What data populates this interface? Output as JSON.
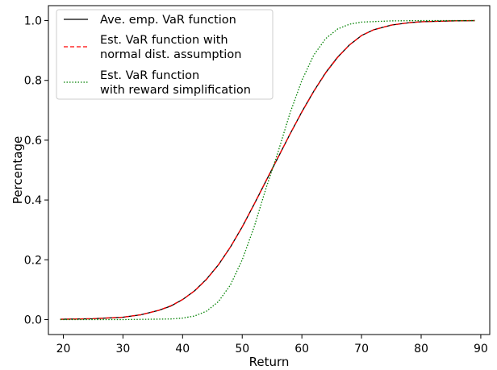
{
  "chart_data": {
    "type": "line",
    "title": "",
    "xlabel": "Return",
    "ylabel": "Percentage",
    "xlim": [
      17.5,
      91.5
    ],
    "ylim": [
      -0.05,
      1.05
    ],
    "x_ticks": [
      20,
      30,
      40,
      50,
      60,
      70,
      80,
      90
    ],
    "y_ticks": [
      0.0,
      0.2,
      0.4,
      0.6,
      0.8,
      1.0
    ],
    "x_tick_labels": [
      "20",
      "30",
      "40",
      "50",
      "60",
      "70",
      "80",
      "90"
    ],
    "y_tick_labels": [
      "0.0",
      "0.2",
      "0.4",
      "0.6",
      "0.8",
      "1.0"
    ],
    "grid": false,
    "legend_position": "top-left",
    "series": [
      {
        "name": "Ave. emp. VaR function",
        "color": "#000000",
        "style": "solid",
        "x": [
          19.5,
          25,
          30,
          33,
          36,
          38,
          40,
          42,
          44,
          46,
          48,
          50,
          52,
          54,
          56,
          58,
          60,
          62,
          64,
          66,
          68,
          70,
          72,
          75,
          78,
          80,
          85,
          89
        ],
        "y": [
          0.001,
          0.003,
          0.008,
          0.016,
          0.031,
          0.045,
          0.067,
          0.096,
          0.135,
          0.183,
          0.242,
          0.31,
          0.386,
          0.464,
          0.542,
          0.62,
          0.695,
          0.764,
          0.826,
          0.878,
          0.919,
          0.95,
          0.969,
          0.985,
          0.993,
          0.996,
          0.999,
          1.0
        ]
      },
      {
        "name": "Est. VaR function with\nnormal dist. assumption",
        "color": "#ff0000",
        "style": "dashed",
        "x": [
          19.5,
          25,
          30,
          33,
          36,
          38,
          40,
          42,
          44,
          46,
          48,
          50,
          52,
          54,
          56,
          58,
          60,
          62,
          64,
          66,
          68,
          70,
          72,
          75,
          78,
          80,
          85,
          89
        ],
        "y": [
          0.001,
          0.003,
          0.008,
          0.016,
          0.031,
          0.046,
          0.067,
          0.096,
          0.134,
          0.183,
          0.242,
          0.31,
          0.386,
          0.465,
          0.543,
          0.62,
          0.694,
          0.763,
          0.825,
          0.877,
          0.919,
          0.95,
          0.969,
          0.985,
          0.993,
          0.996,
          0.999,
          1.0
        ]
      },
      {
        "name": "Est. VaR function\nwith reward simplification",
        "color": "#008000",
        "style": "dotted",
        "x": [
          19.5,
          30,
          38,
          40,
          42,
          44,
          46,
          48,
          50,
          52,
          54,
          55,
          56,
          58,
          60,
          62,
          64,
          66,
          68,
          70,
          75,
          80,
          89
        ],
        "y": [
          0.0,
          0.0,
          0.002,
          0.005,
          0.012,
          0.028,
          0.06,
          0.115,
          0.2,
          0.31,
          0.44,
          0.5,
          0.56,
          0.69,
          0.8,
          0.885,
          0.94,
          0.972,
          0.988,
          0.995,
          0.999,
          1.0,
          1.0
        ]
      }
    ]
  }
}
